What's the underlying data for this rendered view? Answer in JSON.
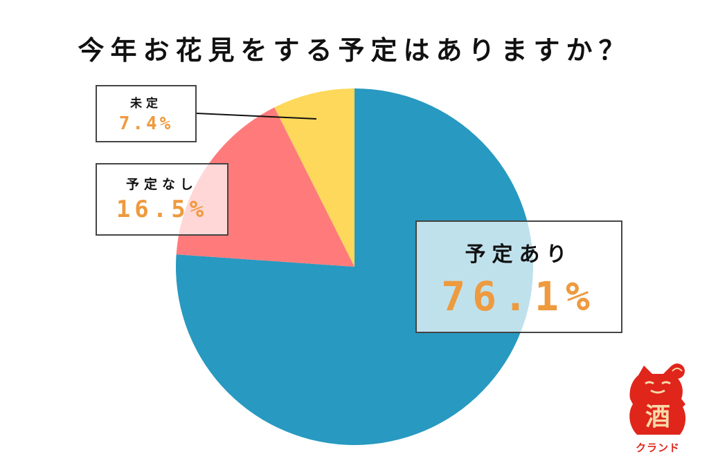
{
  "title": "今年お花見をする予定はありますか？",
  "colors": {
    "ari": "#2899c0",
    "nashi": "#ff7b7b",
    "mitei": "#fdd85a",
    "value_text": "#ee9a3e",
    "logo": "#e0251b"
  },
  "labels": {
    "ari": {
      "name": "予定あり",
      "value": "76.1%"
    },
    "nashi": {
      "name": "予定なし",
      "value": "16.5%"
    },
    "mitei": {
      "name": "未定",
      "value": "7.4%"
    }
  },
  "logo": {
    "glyph": "酒",
    "text": "クランド"
  },
  "chart_data": {
    "type": "pie",
    "title": "今年お花見をする予定はありますか？",
    "categories": [
      "予定あり",
      "予定なし",
      "未定"
    ],
    "values": [
      76.1,
      16.5,
      7.4
    ],
    "unit": "%",
    "colors": [
      "#2899c0",
      "#ff7b7b",
      "#fdd85a"
    ],
    "start_angle": "12 o'clock, clockwise",
    "legend": "none (callout label boxes)"
  }
}
